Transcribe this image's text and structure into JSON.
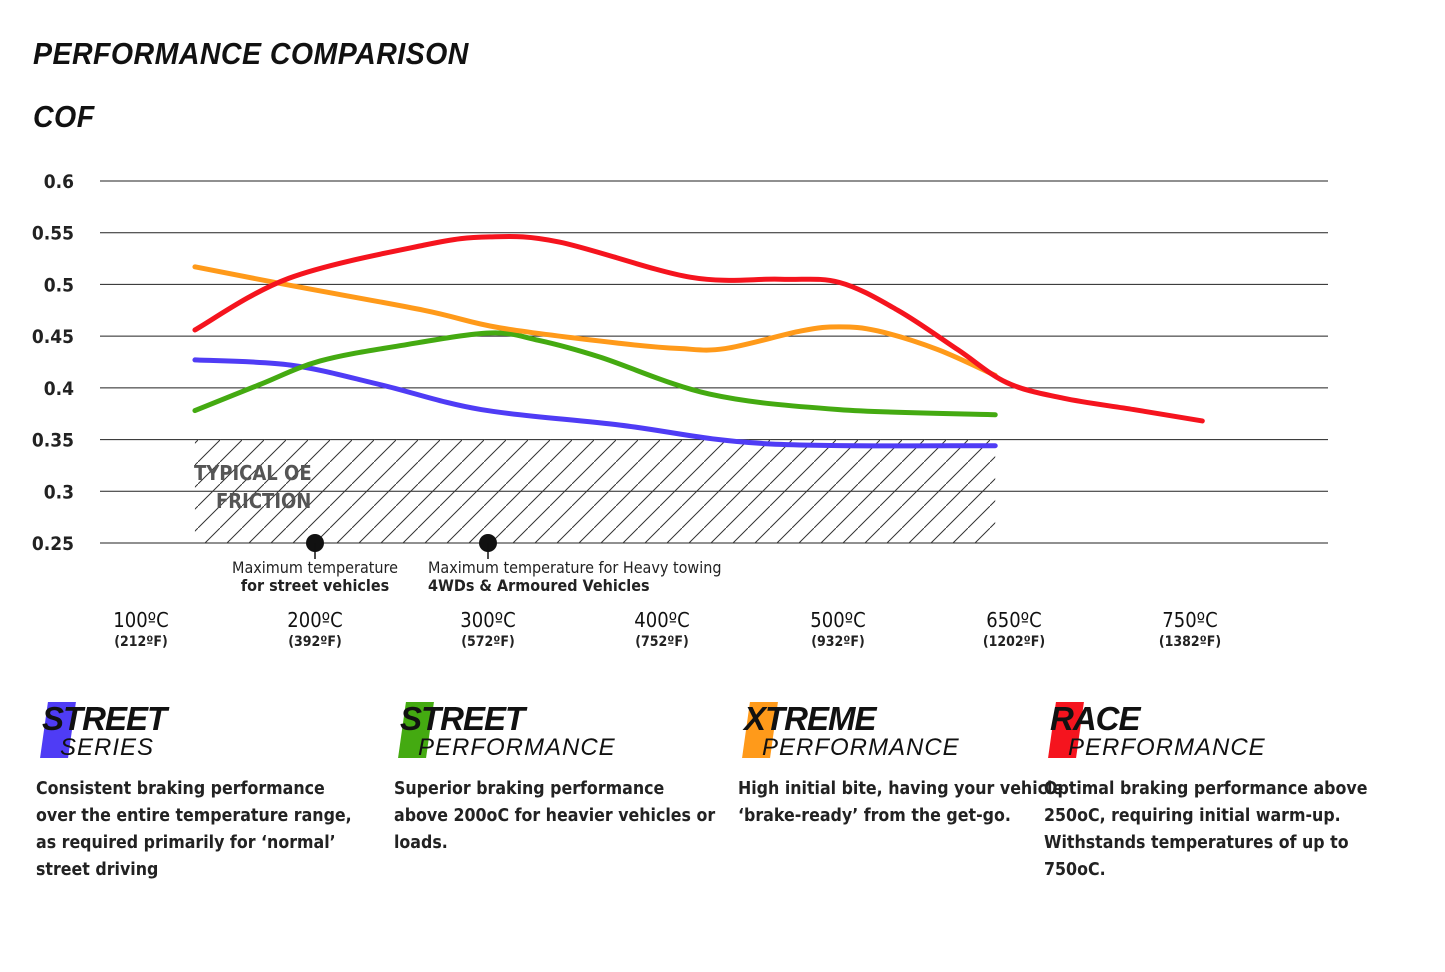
{
  "heading": "PERFORMANCE COMPARISON",
  "chart_data": {
    "type": "line",
    "title": "COF",
    "ylabel": "",
    "xlabel": "",
    "ylim": [
      0.25,
      0.6
    ],
    "yticks": [
      "0.6",
      "0.55",
      "0.5",
      "0.45",
      "0.4",
      "0.35",
      "0.3",
      "0.25"
    ],
    "grid": true,
    "xticks": [
      {
        "value": 100,
        "label": "100ºC",
        "sub": "(212ºF)"
      },
      {
        "value": 200,
        "label": "200ºC",
        "sub": "(392ºF)"
      },
      {
        "value": 300,
        "label": "300ºC",
        "sub": "(572ºF)"
      },
      {
        "value": 400,
        "label": "400ºC",
        "sub": "(752ºF)"
      },
      {
        "value": 500,
        "label": "500ºC",
        "sub": "(932ºF)"
      },
      {
        "value": 650,
        "label": "650ºC",
        "sub": "(1202ºF)"
      },
      {
        "value": 750,
        "label": "750ºC",
        "sub": "(1382ºF)"
      }
    ],
    "series": [
      {
        "product": "Street Series",
        "color": "#4f3cf5",
        "points": [
          [
            131,
            0.427
          ],
          [
            186,
            0.422
          ],
          [
            238,
            0.403
          ],
          [
            296,
            0.379
          ],
          [
            376,
            0.364
          ],
          [
            459,
            0.346
          ],
          [
            634,
            0.344
          ]
        ]
      },
      {
        "product": "Street Performance",
        "color": "#44aa11",
        "points": [
          [
            131,
            0.378
          ],
          [
            168,
            0.403
          ],
          [
            203,
            0.426
          ],
          [
            250,
            0.441
          ],
          [
            301,
            0.453
          ],
          [
            329,
            0.446
          ],
          [
            364,
            0.43
          ],
          [
            427,
            0.394
          ],
          [
            501,
            0.379
          ],
          [
            634,
            0.374
          ]
        ]
      },
      {
        "product": "Xtreme Performance",
        "color": "#ff9a1a",
        "points": [
          [
            131,
            0.517
          ],
          [
            186,
            0.499
          ],
          [
            263,
            0.475
          ],
          [
            307,
            0.458
          ],
          [
            376,
            0.443
          ],
          [
            410,
            0.438
          ],
          [
            436,
            0.438
          ],
          [
            479,
            0.455
          ],
          [
            501,
            0.459
          ],
          [
            534,
            0.455
          ],
          [
            585,
            0.437
          ],
          [
            634,
            0.412
          ]
        ]
      },
      {
        "product": "Race Performance",
        "color": "#f5141e",
        "points": [
          [
            131,
            0.456
          ],
          [
            185,
            0.506
          ],
          [
            263,
            0.538
          ],
          [
            301,
            0.546
          ],
          [
            341,
            0.541
          ],
          [
            416,
            0.507
          ],
          [
            467,
            0.505
          ],
          [
            501,
            0.502
          ],
          [
            551,
            0.475
          ],
          [
            602,
            0.437
          ],
          [
            644,
            0.405
          ],
          [
            678,
            0.39
          ],
          [
            718,
            0.379
          ],
          [
            757,
            0.368
          ]
        ]
      }
    ],
    "hatched_region": {
      "label1": "TYPICAL OE",
      "label2": "FRICTION",
      "x": [
        131,
        634
      ],
      "y": [
        0.25,
        0.35
      ]
    },
    "annotations": [
      {
        "x": 200,
        "y": 0.25,
        "line1": "Maximum temperature",
        "line2": "for street vehicles"
      },
      {
        "x": 300,
        "y": 0.25,
        "line1": "Maximum temperature for Heavy towing",
        "line2": "4WDs & Armoured Vehicles"
      }
    ]
  },
  "products": [
    {
      "first": "S",
      "rest": "TREET",
      "sub_first": "S",
      "sub_rest": "ERIES",
      "color": "#4f3cf5",
      "desc": "Consistent braking performance over the entire temperature range, as required primarily for ‘normal’ street driving"
    },
    {
      "first": "S",
      "rest": "TREET",
      "sub_first": "P",
      "sub_rest": "ERFORMANCE",
      "color": "#44aa11",
      "desc": "Superior braking performance above 200oC for heavier vehicles or loads."
    },
    {
      "first": "X",
      "rest": "TREME",
      "sub_first": "P",
      "sub_rest": "ERFORMANCE",
      "color": "#ff9a1a",
      "desc": "High initial bite, having your vehicle ‘brake-ready’ from the get-go."
    },
    {
      "first": "R",
      "rest": "ACE",
      "sub_first": "P",
      "sub_rest": "ERFORMANCE",
      "color": "#f5141e",
      "desc": "Optimal braking performance above 250oC, requiring initial warm-up. Withstands temperatures of up to 750oC."
    }
  ]
}
